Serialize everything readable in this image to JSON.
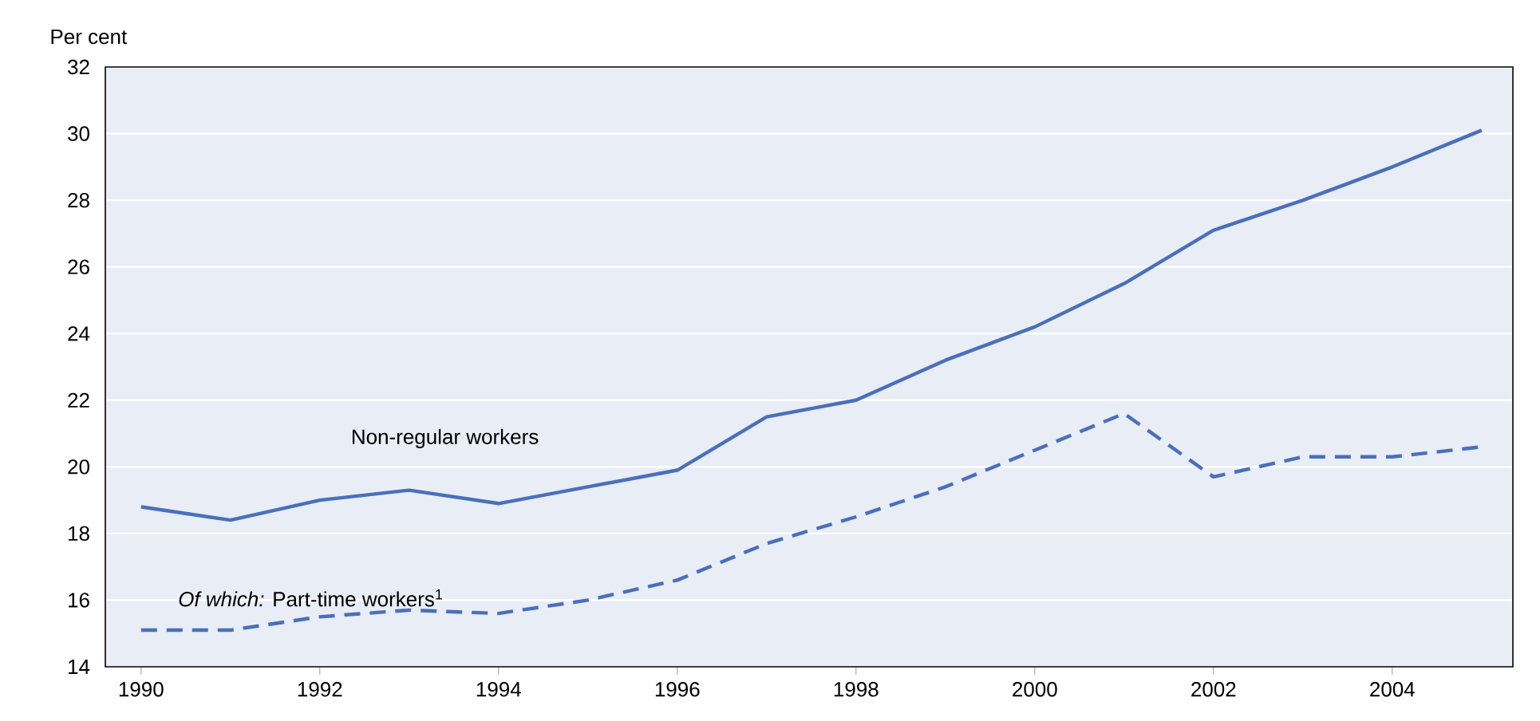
{
  "chart_data": {
    "type": "line",
    "ylabel": "Per cent",
    "x": [
      1990,
      1991,
      1992,
      1993,
      1994,
      1995,
      1996,
      1997,
      1998,
      1999,
      2000,
      2001,
      2002,
      2003,
      2004,
      2005
    ],
    "series": [
      {
        "name": "Non-regular workers",
        "color": "#4a6fbb",
        "line_style": "solid",
        "values": [
          18.8,
          18.4,
          19.0,
          19.3,
          18.9,
          19.4,
          19.9,
          21.5,
          22.0,
          23.2,
          24.2,
          25.5,
          27.1,
          28.0,
          29.0,
          30.1
        ]
      },
      {
        "name": "*Of which:* Part-time workers$^{1}$",
        "color": "#4a6fbb",
        "line_style": "dashed",
        "values": [
          15.1,
          15.1,
          15.5,
          15.7,
          15.6,
          16.0,
          16.6,
          17.7,
          18.5,
          19.4,
          20.5,
          21.6,
          19.7,
          20.3,
          20.3,
          20.6
        ]
      }
    ],
    "xlim": [
      1989.6,
      2005.35
    ],
    "ylim": [
      14,
      32
    ],
    "xticks": [
      1990,
      1992,
      1994,
      1996,
      1998,
      2000,
      2002,
      2004
    ],
    "yticks": [
      14,
      16,
      18,
      20,
      22,
      24,
      26,
      28,
      30,
      32
    ],
    "grid": "y",
    "legend": false,
    "marker": "none"
  }
}
